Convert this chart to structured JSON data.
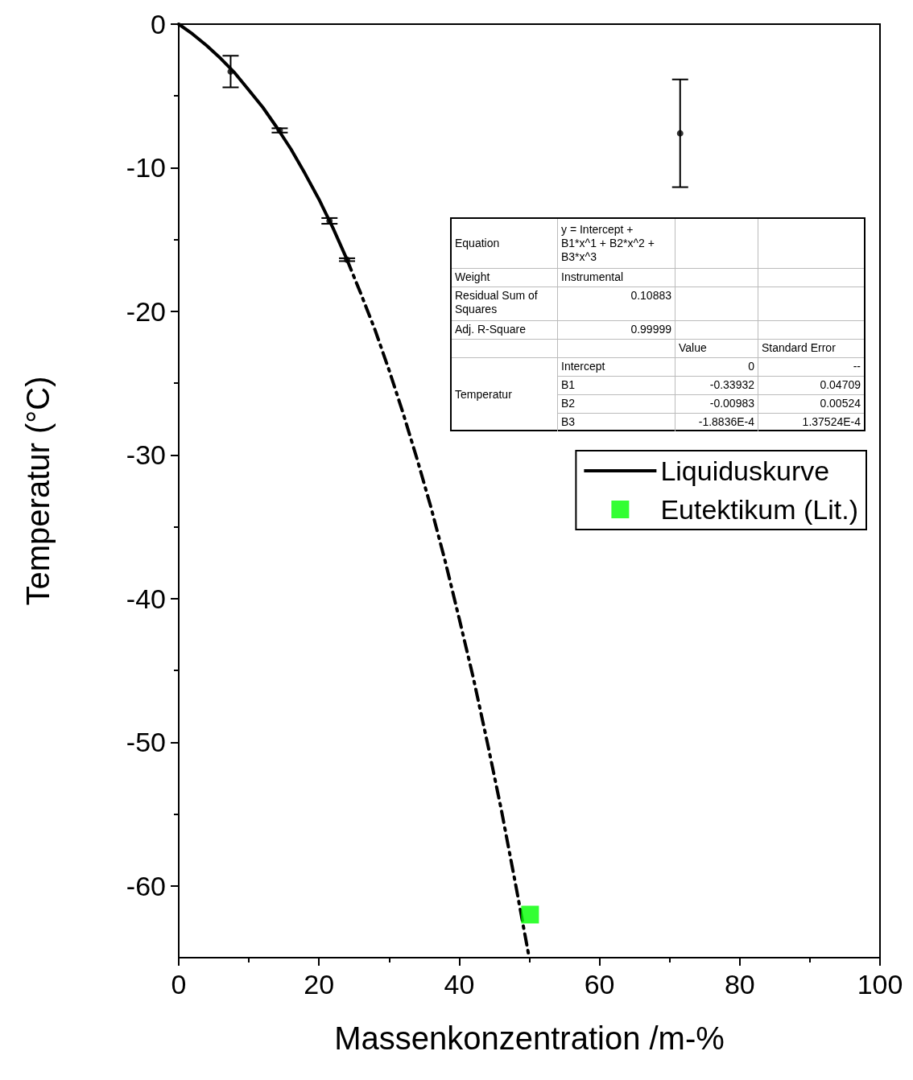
{
  "chart_data": {
    "type": "scatter",
    "xlabel": "Massenkonzentration /m-%",
    "ylabel": "Temperatur (°C)",
    "xlim": [
      0,
      100
    ],
    "xticks": [
      0,
      20,
      40,
      60,
      80,
      100
    ],
    "ylim": [
      -65,
      0
    ],
    "yticks": [
      -60,
      -50,
      -40,
      -30,
      -20,
      -10,
      0
    ],
    "grid": false,
    "legend": "right",
    "series": [
      {
        "name": "Liquiduskurve",
        "type": "line",
        "color": "#000000",
        "marker": "none",
        "line_style": "solid",
        "x": [
          0,
          2,
          4,
          6,
          8,
          10,
          12,
          14,
          16,
          18,
          20,
          22,
          24
        ],
        "values": [
          0,
          -0.7,
          -1.5,
          -2.4,
          -3.4,
          -4.6,
          -5.8,
          -7.2,
          -8.7,
          -10.4,
          -12.2,
          -14.2,
          -16.4
        ]
      },
      {
        "type": "line",
        "color": "#000000",
        "marker": "none",
        "line_style": "dashed",
        "x": [
          24,
          26,
          28,
          30,
          32,
          34,
          36,
          38,
          40,
          42,
          44,
          46,
          48,
          49.9
        ],
        "values": [
          -16.4,
          -18.8,
          -21.3,
          -24.1,
          -27.1,
          -30.3,
          -33.7,
          -37.4,
          -41.4,
          -45.5,
          -50,
          -54.7,
          -59.8,
          -64.8
        ]
      },
      {
        "color": "#000000",
        "marker": "circle",
        "x": [
          7.4,
          14.4,
          21.5,
          24,
          71.5
        ],
        "values": [
          -3.3,
          -7.4,
          -13.7,
          -16.4,
          -7.6
        ],
        "errors": [
          1.1,
          0.15,
          0.2,
          0.1,
          3.75
        ]
      },
      {
        "name": "Eutektikum (Lit.)",
        "color": "#00ff00",
        "marker": "square",
        "x": [
          50.1
        ],
        "values": [
          -62
        ]
      }
    ],
    "annotations": [
      "Equation",
      "y = Intercept + B1*x^1 + B2*x^2 + B3*x^3",
      "Weight",
      "Instrumental",
      "Residual Sum of Squares",
      "0.10883",
      "Adj. R-Square",
      "0.99999",
      "Value",
      "Standard Error",
      "Temperatur",
      "Intercept",
      "0",
      "--",
      "B1",
      "-0.33932",
      "0.04709",
      "B2",
      "-0.00983",
      "0.00524",
      "B3",
      "-1.8836E-4",
      "1.37524E-4"
    ]
  }
}
